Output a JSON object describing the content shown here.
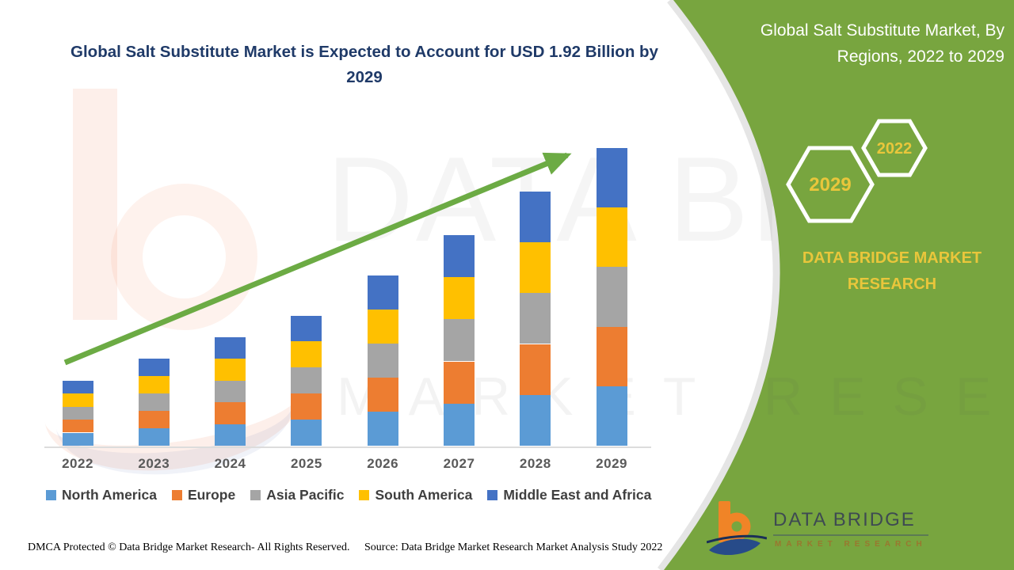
{
  "page_title": "Global Salt Substitute Market is Expected to Account for USD 1.92 Billion by 2029",
  "right_panel": {
    "title": "Global Salt Substitute Market, By Regions, 2022 to 2029",
    "hexagon_large": "2029",
    "hexagon_small": "2022",
    "brand_text": "DATA BRIDGE MARKET RESEARCH",
    "panel_color": "#78A53F",
    "accent_yellow": "#E9C63B"
  },
  "watermark": {
    "line1": "DATA BRIDGE",
    "line2": "MARKET RESEARCH"
  },
  "logo": {
    "name": "DATA BRIDGE",
    "sub": "MARKET RESEARCH"
  },
  "footer": {
    "left": "DMCA Protected © Data Bridge Market Research- All Rights Reserved.",
    "source": "Source: Data Bridge Market Research Market Analysis Study 2022"
  },
  "chart_data": {
    "type": "bar",
    "stacked": true,
    "title": "Global Salt Substitute Market is Expected to Account for USD 1.92 Billion by 2029",
    "xlabel": "",
    "ylabel": "",
    "unit": "USD Billion",
    "axis_labels_visible": false,
    "grid": false,
    "legend_position": "bottom",
    "categories": [
      "2022",
      "2023",
      "2024",
      "2025",
      "2026",
      "2027",
      "2028",
      "2029"
    ],
    "totals": [
      0.42,
      0.56,
      0.7,
      0.84,
      1.1,
      1.36,
      1.64,
      1.92
    ],
    "final_value_label": "USD 1.92 Billion by 2029",
    "values_estimated": true,
    "ylim": [
      0,
      2.0
    ],
    "trend_arrow": {
      "present": true,
      "color": "#6CAB44"
    },
    "series": [
      {
        "name": "North America",
        "color": "#5B9BD5",
        "values": [
          0.084,
          0.112,
          0.14,
          0.168,
          0.22,
          0.272,
          0.328,
          0.384
        ]
      },
      {
        "name": "Europe",
        "color": "#ED7D31",
        "values": [
          0.084,
          0.112,
          0.14,
          0.168,
          0.22,
          0.272,
          0.328,
          0.384
        ]
      },
      {
        "name": "Asia Pacific",
        "color": "#A5A5A5",
        "values": [
          0.084,
          0.112,
          0.14,
          0.168,
          0.22,
          0.272,
          0.328,
          0.384
        ]
      },
      {
        "name": "South America",
        "color": "#FFC000",
        "values": [
          0.084,
          0.112,
          0.14,
          0.168,
          0.22,
          0.272,
          0.328,
          0.384
        ]
      },
      {
        "name": "Middle East and Africa",
        "color": "#4472C4",
        "values": [
          0.084,
          0.112,
          0.14,
          0.168,
          0.22,
          0.272,
          0.328,
          0.384
        ]
      }
    ]
  }
}
